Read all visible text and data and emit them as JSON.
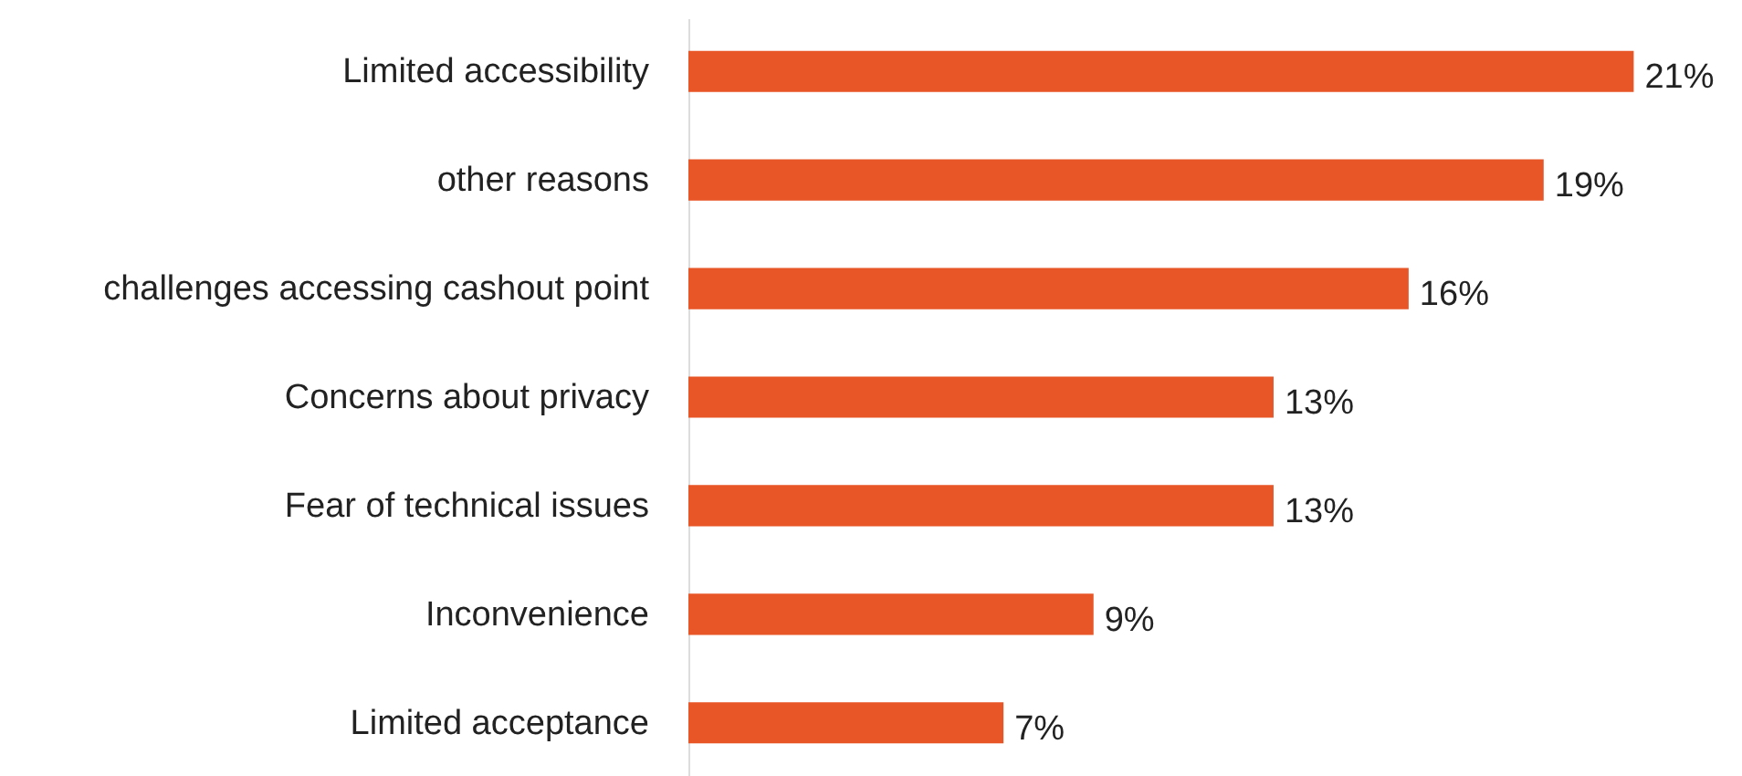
{
  "chart_data": {
    "type": "bar",
    "orientation": "horizontal",
    "categories": [
      "Limited accessibility",
      "other reasons",
      "challenges accessing cashout point",
      "Concerns about privacy",
      "Fear of technical issues",
      "Inconvenience",
      "Limited acceptance"
    ],
    "values": [
      21,
      19,
      16,
      13,
      13,
      9,
      7
    ],
    "color": "#e85628",
    "value_labels": [
      "21%",
      "19%",
      "16%",
      "13%",
      "13%",
      "9%",
      "7%"
    ]
  }
}
